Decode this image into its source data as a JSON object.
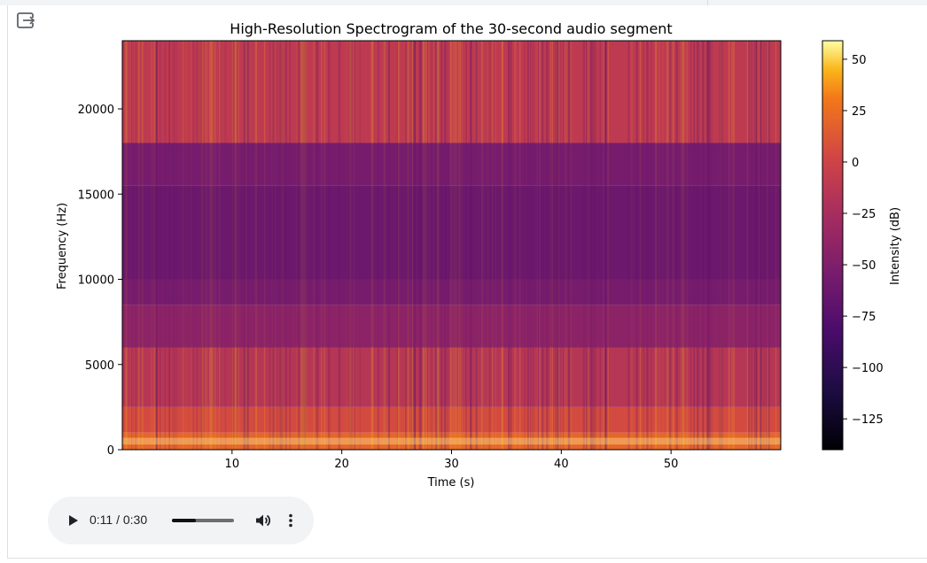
{
  "icons": {
    "exit": "exit-to-app-icon",
    "play": "play-icon",
    "volume": "volume-icon",
    "more": "more-vert-icon"
  },
  "chart_data": {
    "type": "heatmap",
    "title": "High-Resolution Spectrogram of the 30-second audio segment",
    "xlabel": "Time (s)",
    "ylabel": "Frequency (Hz)",
    "xlim": [
      0,
      60
    ],
    "ylim": [
      0,
      24000
    ],
    "xticks": [
      10,
      20,
      30,
      40,
      50
    ],
    "yticks": [
      0,
      5000,
      10000,
      15000,
      20000
    ],
    "colormap": "inferno",
    "colorbar": {
      "label": "Intensity (dB)",
      "range": [
        -140,
        59
      ],
      "ticks": [
        50,
        25,
        0,
        -25,
        -50,
        -75,
        -100,
        -125
      ]
    },
    "frequency_bands": [
      {
        "from": 0,
        "to": 1000,
        "level_db": 20
      },
      {
        "from": 1000,
        "to": 2500,
        "level_db": 5
      },
      {
        "from": 2500,
        "to": 6000,
        "level_db": -15
      },
      {
        "from": 6000,
        "to": 8500,
        "level_db": -42
      },
      {
        "from": 8500,
        "to": 10000,
        "level_db": -55
      },
      {
        "from": 10000,
        "to": 15500,
        "level_db": -62
      },
      {
        "from": 15500,
        "to": 18000,
        "level_db": -55
      },
      {
        "from": 18000,
        "to": 24000,
        "level_db": -10
      }
    ]
  },
  "audio": {
    "time": "0:11 / 0:30",
    "progress": 0.39
  }
}
